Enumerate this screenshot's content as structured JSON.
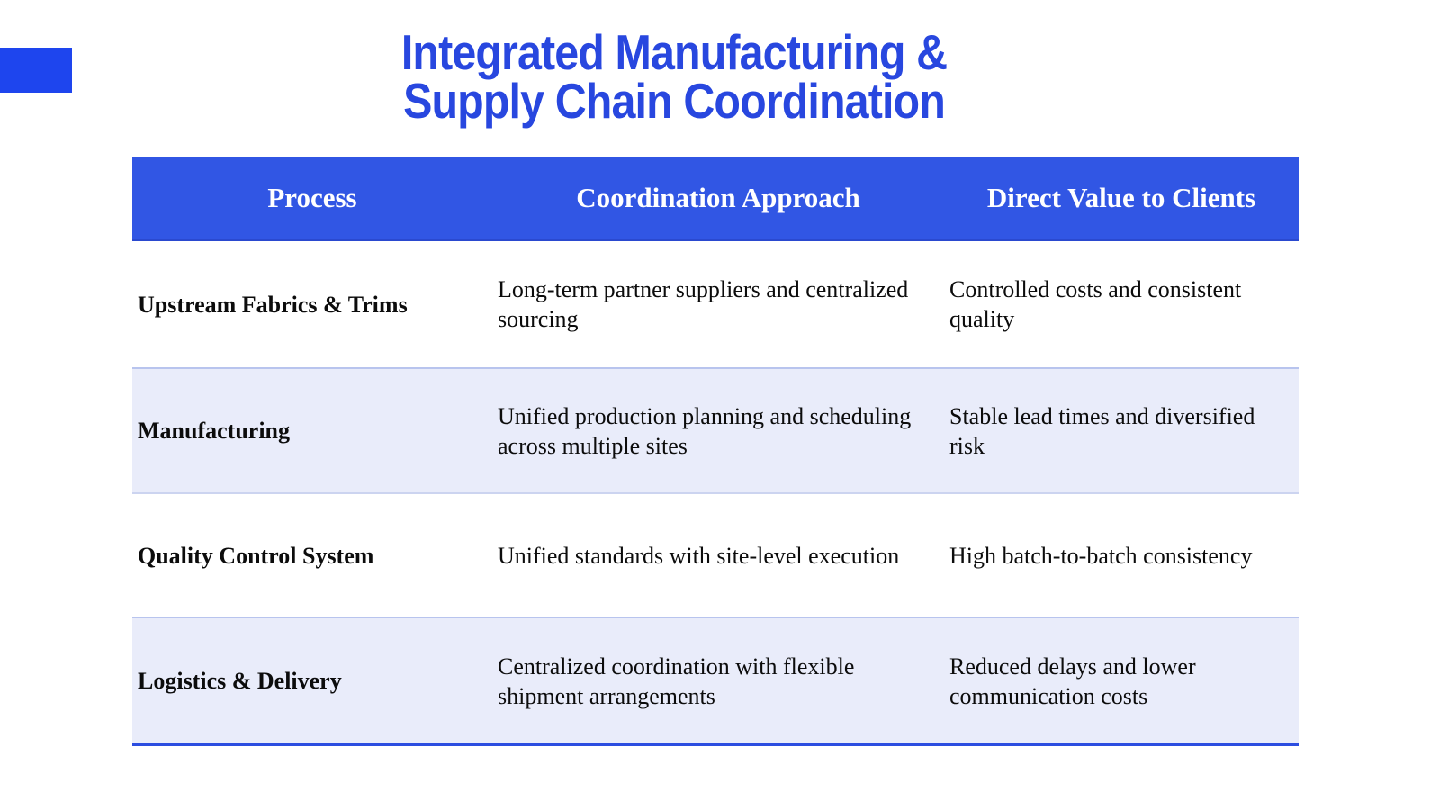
{
  "title": {
    "line1": "Integrated Manufacturing &",
    "line2": "Supply Chain Coordination",
    "color": "#2847df"
  },
  "accent": {
    "color": "#1e45ee"
  },
  "table": {
    "header_bg": "#3156e4",
    "header_text_color": "#ffffff",
    "alt_row_bg": "#e9ecfa",
    "bottom_border_color": "#2c4de0",
    "columns": [
      "Process",
      "Coordination Approach",
      "Direct Value to Clients"
    ],
    "rows": [
      {
        "process": "Upstream Fabrics & Trims",
        "approach": "Long-term partner suppliers and centralized sourcing",
        "value": "Controlled costs and consistent quality"
      },
      {
        "process": "Manufacturing",
        "approach": "Unified production planning and scheduling across multiple sites",
        "value": "Stable lead times and diversified risk"
      },
      {
        "process": "Quality Control System",
        "approach": "Unified standards with site-level execution",
        "value": "High batch-to-batch consistency"
      },
      {
        "process": "Logistics & Delivery",
        "approach": "Centralized coordination with flexible shipment arrangements",
        "value": "Reduced delays and lower communication costs"
      }
    ]
  }
}
